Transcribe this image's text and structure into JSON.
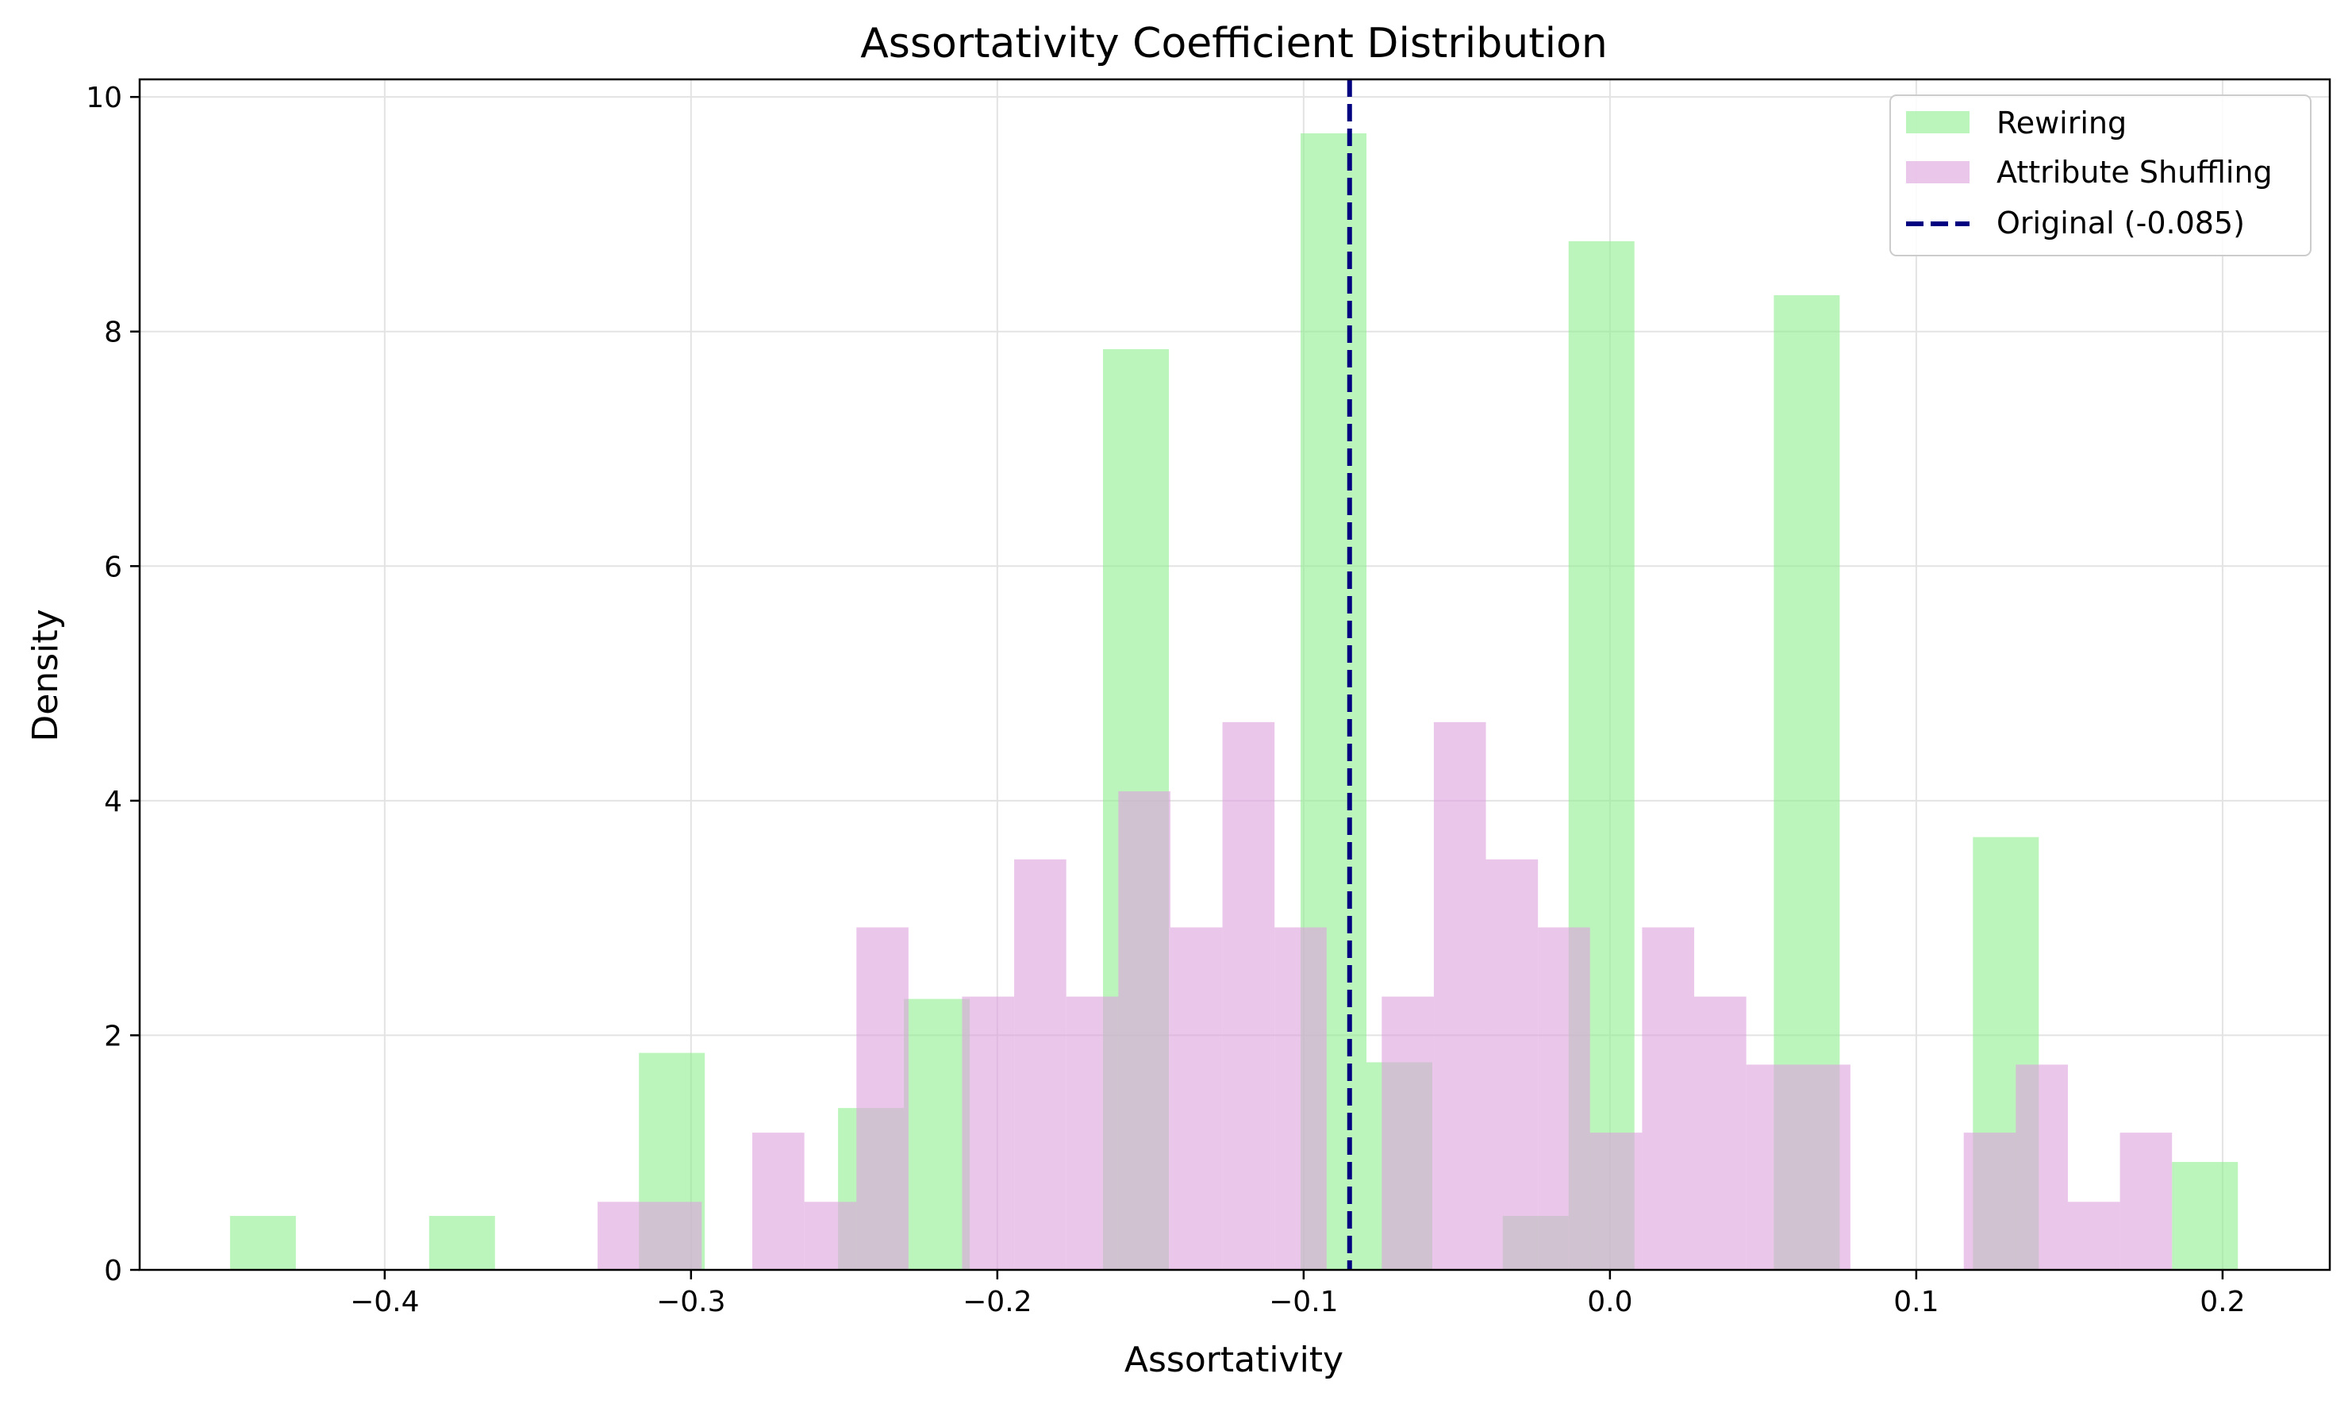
{
  "chart_data": {
    "type": "histogram",
    "title": "Assortativity Coefficient Distribution",
    "xlabel": "Assortativity",
    "ylabel": "Density",
    "xlim": [
      -0.48,
      0.235
    ],
    "ylim": [
      0,
      10.15
    ],
    "xticks": [
      -0.4,
      -0.3,
      -0.2,
      -0.1,
      0.0,
      0.1,
      0.2
    ],
    "xtick_labels": [
      "−0.4",
      "−0.3",
      "−0.2",
      "−0.1",
      "0.0",
      "0.1",
      "0.2"
    ],
    "yticks": [
      0,
      2,
      4,
      6,
      8,
      10
    ],
    "ytick_labels": [
      "0",
      "2",
      "4",
      "6",
      "8",
      "10"
    ],
    "grid": true,
    "legend_position": "top-right",
    "series": [
      {
        "name": "Rewiring",
        "color": "#90ee90",
        "opacity": 0.6,
        "bins": [
          {
            "x0": -0.4505,
            "x1": -0.429,
            "y": 0.46
          },
          {
            "x0": -0.3855,
            "x1": -0.364,
            "y": 0.46
          },
          {
            "x0": -0.317,
            "x1": -0.2955,
            "y": 1.85
          },
          {
            "x0": -0.252,
            "x1": -0.2305,
            "y": 1.38
          },
          {
            "x0": -0.2305,
            "x1": -0.209,
            "y": 2.31
          },
          {
            "x0": -0.1655,
            "x1": -0.144,
            "y": 7.85
          },
          {
            "x0": -0.101,
            "x1": -0.0795,
            "y": 9.69
          },
          {
            "x0": -0.0795,
            "x1": -0.058,
            "y": 1.77
          },
          {
            "x0": -0.035,
            "x1": -0.0135,
            "y": 0.46
          },
          {
            "x0": -0.0135,
            "x1": 0.008,
            "y": 8.77
          },
          {
            "x0": 0.0535,
            "x1": 0.075,
            "y": 8.31
          },
          {
            "x0": 0.1185,
            "x1": 0.14,
            "y": 3.69
          },
          {
            "x0": 0.1835,
            "x1": 0.205,
            "y": 0.92
          }
        ]
      },
      {
        "name": "Attribute Shuffling",
        "color": "#dda0dd",
        "opacity": 0.6,
        "bins": [
          {
            "x0": -0.3305,
            "x1": -0.2965,
            "y": 0.58
          },
          {
            "x0": -0.28,
            "x1": -0.263,
            "y": 1.17
          },
          {
            "x0": -0.263,
            "x1": -0.246,
            "y": 0.58
          },
          {
            "x0": -0.246,
            "x1": -0.229,
            "y": 2.92
          },
          {
            "x0": -0.2115,
            "x1": -0.1945,
            "y": 2.33
          },
          {
            "x0": -0.1945,
            "x1": -0.1775,
            "y": 3.5
          },
          {
            "x0": -0.1775,
            "x1": -0.1605,
            "y": 2.33
          },
          {
            "x0": -0.1605,
            "x1": -0.1435,
            "y": 4.08
          },
          {
            "x0": -0.1435,
            "x1": -0.1265,
            "y": 2.92
          },
          {
            "x0": -0.1265,
            "x1": -0.1095,
            "y": 4.67
          },
          {
            "x0": -0.1095,
            "x1": -0.0925,
            "y": 2.92
          },
          {
            "x0": -0.0745,
            "x1": -0.0575,
            "y": 2.33
          },
          {
            "x0": -0.0575,
            "x1": -0.0405,
            "y": 4.67
          },
          {
            "x0": -0.0405,
            "x1": -0.0235,
            "y": 3.5
          },
          {
            "x0": -0.0235,
            "x1": -0.0065,
            "y": 2.92
          },
          {
            "x0": -0.0065,
            "x1": 0.0105,
            "y": 1.17
          },
          {
            "x0": 0.0105,
            "x1": 0.0275,
            "y": 2.92
          },
          {
            "x0": 0.0275,
            "x1": 0.0445,
            "y": 2.33
          },
          {
            "x0": 0.0445,
            "x1": 0.0785,
            "y": 1.75
          },
          {
            "x0": 0.1155,
            "x1": 0.1325,
            "y": 1.17
          },
          {
            "x0": 0.1325,
            "x1": 0.1495,
            "y": 1.75
          },
          {
            "x0": 0.1495,
            "x1": 0.1665,
            "y": 0.58
          },
          {
            "x0": 0.1665,
            "x1": 0.1835,
            "y": 1.17
          }
        ]
      }
    ],
    "reference_line": {
      "name": "Original (-0.085)",
      "x": -0.085,
      "color": "#000080",
      "style": "dashed"
    }
  }
}
